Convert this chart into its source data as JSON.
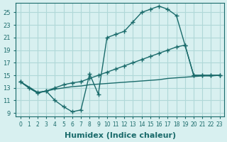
{
  "line1_x": [
    0,
    1,
    2,
    3,
    4,
    5,
    6,
    7,
    8,
    9,
    10,
    11,
    12,
    13,
    14,
    15,
    16,
    17,
    18,
    19,
    20,
    21,
    22,
    23
  ],
  "line1_y": [
    14.0,
    13.0,
    12.2,
    12.5,
    11.0,
    10.0,
    9.2,
    9.5,
    15.2,
    12.0,
    21.0,
    21.5,
    22.0,
    23.5,
    25.0,
    25.5,
    26.0,
    25.5,
    24.5,
    19.8,
    15.0,
    15.0,
    15.0,
    15.0
  ],
  "line2_x": [
    0,
    2,
    3,
    4,
    5,
    6,
    7,
    8,
    9,
    10,
    11,
    12,
    13,
    14,
    15,
    16,
    17,
    18,
    19,
    20,
    21,
    22,
    23
  ],
  "line2_y": [
    14.0,
    12.3,
    12.5,
    13.0,
    13.5,
    13.8,
    14.0,
    14.5,
    15.0,
    15.5,
    16.0,
    16.5,
    17.0,
    17.5,
    18.0,
    18.5,
    19.0,
    19.5,
    19.8,
    15.0,
    15.0,
    15.0,
    15.0
  ],
  "line3_x": [
    0,
    1,
    2,
    3,
    4,
    5,
    6,
    7,
    8,
    9,
    10,
    11,
    12,
    13,
    14,
    15,
    16,
    17,
    18,
    19,
    20,
    21,
    22,
    23
  ],
  "line3_y": [
    14.0,
    13.0,
    12.2,
    12.5,
    12.8,
    13.0,
    13.2,
    13.3,
    13.5,
    13.6,
    13.7,
    13.8,
    13.9,
    14.0,
    14.1,
    14.2,
    14.3,
    14.5,
    14.6,
    14.7,
    14.8,
    14.9,
    14.9,
    15.0
  ],
  "color": "#1a6b6b",
  "bg_color": "#d8f0f0",
  "grid_color": "#b0d8d8",
  "xlabel": "Humidex (Indice chaleur)",
  "xlabel_fontsize": 8,
  "ylabel_ticks": [
    9,
    11,
    13,
    15,
    17,
    19,
    21,
    23,
    25
  ],
  "xlim": [
    -0.5,
    23.5
  ],
  "ylim": [
    8.5,
    26.5
  ],
  "xticks": [
    0,
    1,
    2,
    3,
    4,
    5,
    6,
    7,
    8,
    9,
    10,
    11,
    12,
    13,
    14,
    15,
    16,
    17,
    18,
    19,
    20,
    21,
    22,
    23
  ]
}
